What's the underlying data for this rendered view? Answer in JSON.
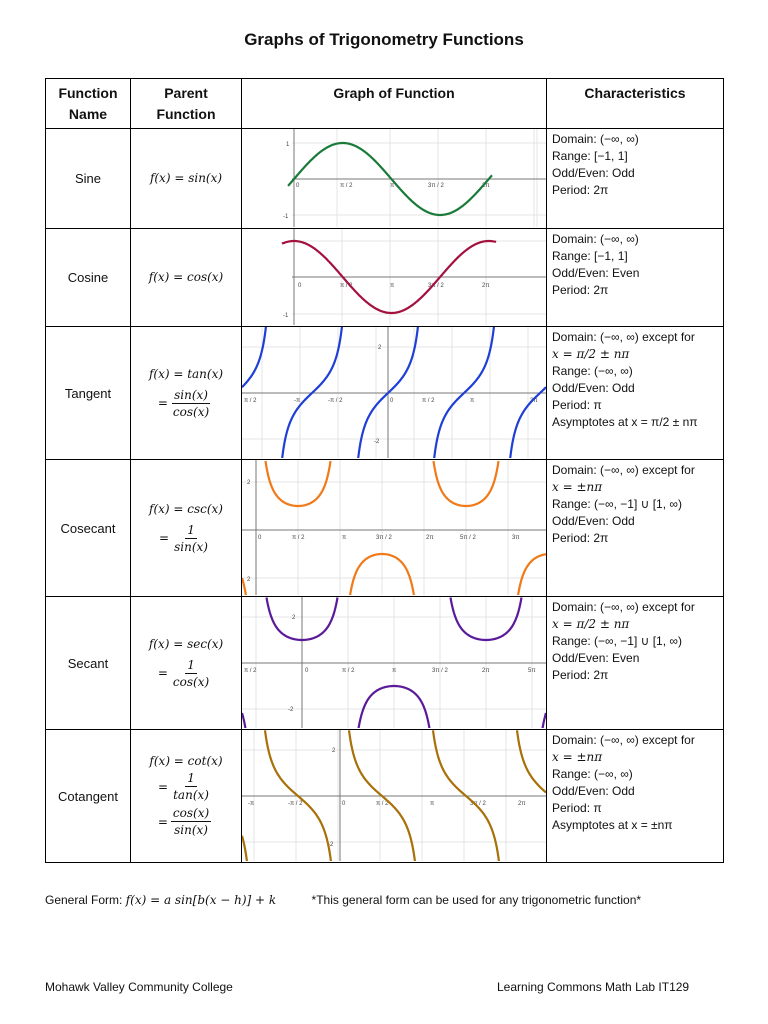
{
  "title": "Graphs of Trigonometry Functions",
  "headers": {
    "name_line1": "Function",
    "name_line2": "Name",
    "parent_line1": "Parent",
    "parent_line2": "Function",
    "graph": "Graph of Function",
    "char": "Characteristics"
  },
  "rows": [
    {
      "name": "Sine",
      "eq1": "f(x) = sin(x)",
      "chars": [
        "Domain: (−∞, ∞)",
        "Range: [−1, 1]",
        "Odd/Even: Odd",
        "Period: 2π"
      ]
    },
    {
      "name": "Cosine",
      "eq1": "f(x) = cos(x)",
      "chars": [
        "Domain: (−∞, ∞)",
        "Range: [−1, 1]",
        "Odd/Even: Even",
        "Period: 2π"
      ]
    },
    {
      "name": "Tangent",
      "eq1": "f(x) = tan(x)",
      "frac1_num": "sin(x)",
      "frac1_den": "cos(x)",
      "chars": [
        "Domain: (−∞, ∞) except for",
        "x = π/2 ± nπ",
        "Range: (−∞, ∞)",
        "Odd/Even: Odd",
        "Period: π",
        "Asymptotes at x = π/2 ± nπ"
      ]
    },
    {
      "name": "Cosecant",
      "eq1": "f(x) = csc(x)",
      "frac1_num": "1",
      "frac1_den": "sin(x)",
      "chars": [
        "Domain: (−∞, ∞) except for",
        "x = ±nπ",
        "Range: (−∞, −1] ∪ [1, ∞)",
        "Odd/Even: Odd",
        "Period: 2π"
      ]
    },
    {
      "name": "Secant",
      "eq1": "f(x) = sec(x)",
      "frac1_num": "1",
      "frac1_den": "cos(x)",
      "chars": [
        "Domain: (−∞, ∞) except for",
        "x = π/2 ± nπ",
        "Range: (−∞, −1] ∪ [1, ∞)",
        "Odd/Even: Even",
        "Period: 2π"
      ]
    },
    {
      "name": "Cotangent",
      "eq1": "f(x) = cot(x)",
      "frac1_num": "1",
      "frac1_den": "tan(x)",
      "frac2_num": "cos(x)",
      "frac2_den": "sin(x)",
      "chars": [
        "Domain: (−∞, ∞) except for",
        "x = ±nπ",
        "Range: (−∞, ∞)",
        "Odd/Even: Odd",
        "Period: π",
        "Asymptotes at x = ±nπ"
      ]
    }
  ],
  "graph_labels": {
    "sine": {
      "y_top": "1",
      "y_bottom": "-1",
      "x": [
        "0",
        "π / 2",
        "π",
        "3π / 2",
        "2π"
      ]
    },
    "cosine": {
      "y_bottom": "-1",
      "x": [
        "0",
        "π / 2",
        "π",
        "3π / 2",
        "2π"
      ]
    },
    "tangent": {
      "y_top": "2",
      "y_bottom": "-2",
      "x": [
        "π / 2",
        "-π",
        "-π / 2",
        "0",
        "π / 2",
        "π",
        "3π"
      ]
    },
    "cosecant": {
      "y_top": "2",
      "y_bottom": "2",
      "x": [
        "0",
        "π / 2",
        "π",
        "3π / 2",
        "2π",
        "5π / 2",
        "3π"
      ]
    },
    "secant": {
      "y_top": "2",
      "y_bottom": "-2",
      "x": [
        "π / 2",
        "0",
        "π / 2",
        "π",
        "3π / 2",
        "2π",
        "5π"
      ]
    },
    "cotangent": {
      "y_top": "2",
      "y_bottom": "-2",
      "x": [
        "-π",
        "-π / 2",
        "0",
        "π / 2",
        "π",
        "3π / 2",
        "2π"
      ]
    }
  },
  "colors": {
    "sine": "#1a7a3a",
    "cosine": "#a3113f",
    "tangent": "#1f3fd6",
    "cosecant": "#f07a1a",
    "secant": "#5a1a9a",
    "cotangent": "#a87008"
  },
  "general_form": {
    "label": "General Form:",
    "equation": "f(x) = a sin[b(x − h)] + k",
    "note": "*This general form can be used for any trigonometric function*"
  },
  "footer": {
    "left": "Mohawk Valley Community College",
    "right": "Learning Commons Math Lab IT129"
  }
}
